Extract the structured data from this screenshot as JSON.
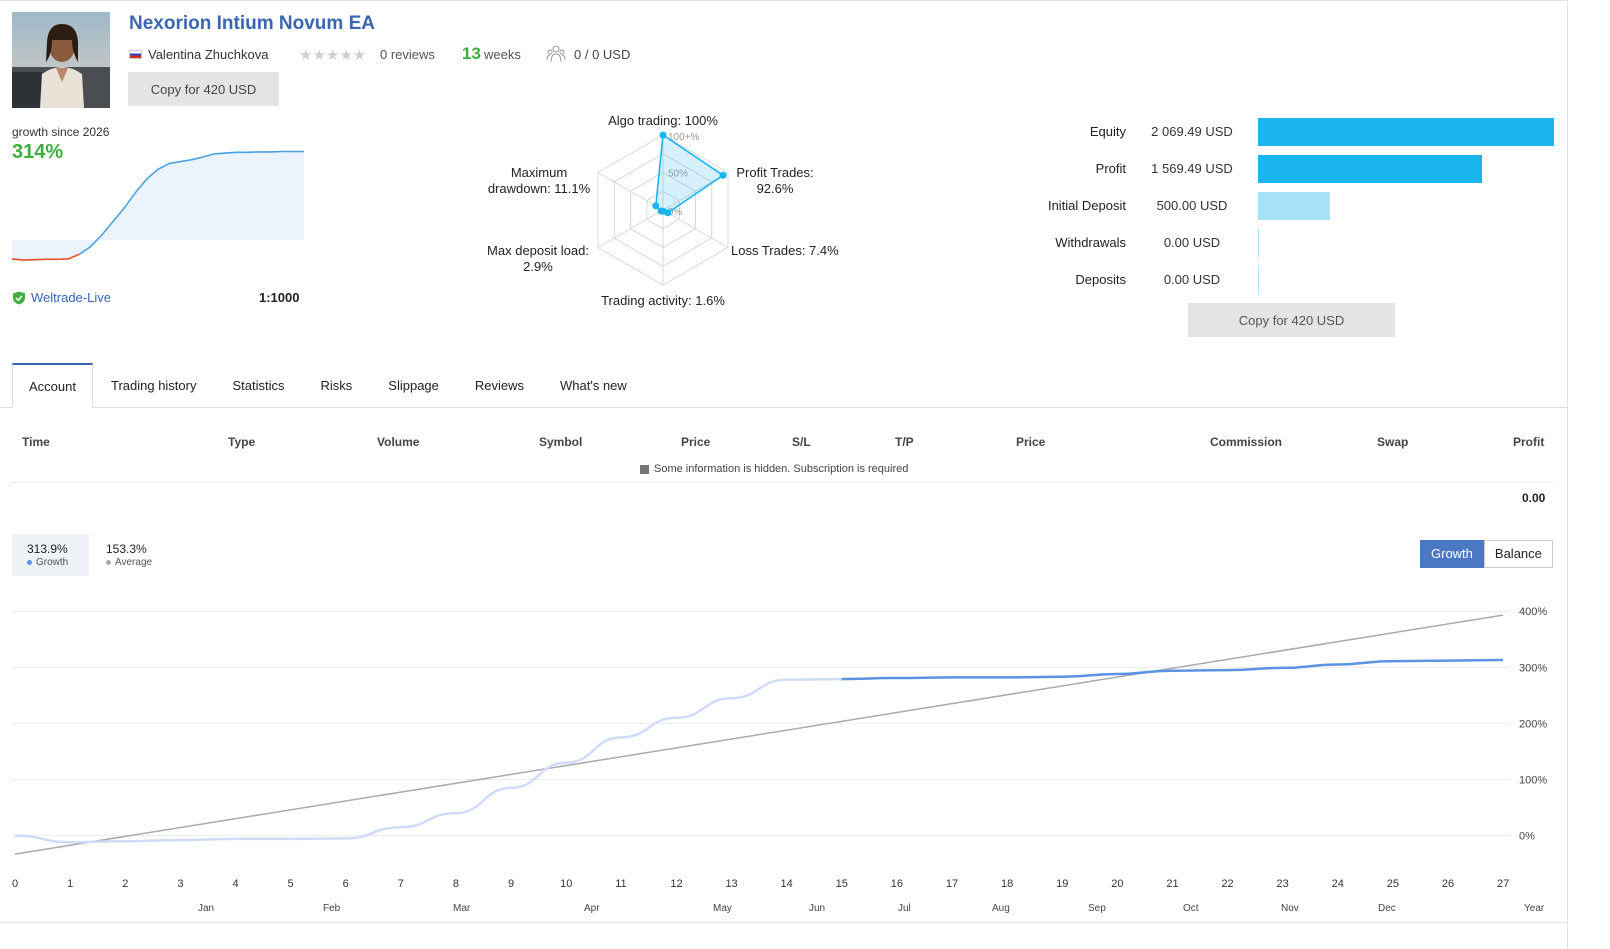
{
  "product": {
    "title": "Nexorion Intium Novum EA",
    "author": "Valentina Zhuchkova",
    "reviews": "0 reviews",
    "weeks_num": "13",
    "weeks_label": "weeks",
    "subscribers": "0 / 0 USD",
    "copy_label": "Copy for 420 USD"
  },
  "growth": {
    "label": "growth since 2026",
    "value": "314%",
    "broker": "Weltrade-Live",
    "leverage": "1:1000"
  },
  "radar": {
    "labels": {
      "algo": "Algo trading: 100%",
      "profit": "Profit Trades:",
      "profit_val": "92.6%",
      "loss": "Loss Trades: 7.4%",
      "activity": "Trading activity: 1.6%",
      "load": "Max deposit load:",
      "load_val": "2.9%",
      "dd": "Maximum",
      "dd2": "drawdown: 11.1%"
    },
    "ticks": [
      "100+%",
      "50%",
      "0%"
    ],
    "values": {
      "algo": 100,
      "profit": 92.6,
      "loss": 7.4,
      "activity": 1.6,
      "load": 2.9,
      "drawdown": 11.1
    }
  },
  "balance_bars": {
    "items": [
      {
        "label": "Equity",
        "value": "2 069.49 USD",
        "amount": 2069.49,
        "color": "#1ab4ee"
      },
      {
        "label": "Profit",
        "value": "1 569.49 USD",
        "amount": 1569.49,
        "color": "#1ab4ee"
      },
      {
        "label": "Initial Deposit",
        "value": "500.00 USD",
        "amount": 500.0,
        "color": "#a7e2f8"
      },
      {
        "label": "Withdrawals",
        "value": "0.00 USD",
        "amount": 0,
        "color": "#a7e2f8"
      },
      {
        "label": "Deposits",
        "value": "0.00 USD",
        "amount": 0,
        "color": "#a7e2f8"
      }
    ],
    "copy_label": "Copy for 420 USD"
  },
  "tabs": [
    "Account",
    "Trading history",
    "Statistics",
    "Risks",
    "Slippage",
    "Reviews",
    "What's new"
  ],
  "table": {
    "headers": [
      "Time",
      "Type",
      "Volume",
      "Symbol",
      "Price",
      "S/L",
      "T/P",
      "Price",
      "Commission",
      "Swap",
      "Profit"
    ],
    "hidden_note": "Some information is hidden. Subscription is required",
    "total_profit": "0.00"
  },
  "legend": {
    "growth_value": "313.9%",
    "growth_label": "Growth",
    "average_value": "153.3%",
    "average_label": "Average"
  },
  "toggle": {
    "growth": "Growth",
    "balance": "Balance"
  },
  "chart_data": {
    "type": "line",
    "x": [
      0,
      1,
      2,
      3,
      4,
      5,
      6,
      7,
      8,
      9,
      10,
      11,
      12,
      13,
      14,
      15,
      16,
      17,
      18,
      19,
      20,
      21,
      22,
      23,
      24,
      25,
      26,
      27
    ],
    "x_tick_labels": [
      "0",
      "1",
      "2",
      "3",
      "4",
      "5",
      "6",
      "7",
      "8",
      "9",
      "10",
      "11",
      "12",
      "13",
      "14",
      "15",
      "16",
      "17",
      "18",
      "19",
      "20",
      "21",
      "22",
      "23",
      "24",
      "25",
      "26",
      "27"
    ],
    "month_labels": [
      "Jan",
      "Feb",
      "Mar",
      "Apr",
      "May",
      "Jun",
      "Jul",
      "Aug",
      "Sep",
      "Oct",
      "Nov",
      "Dec",
      "Year"
    ],
    "y_tick_labels": [
      "400%",
      "300%",
      "200%",
      "100%",
      "0%"
    ],
    "ylim": [
      -40,
      420
    ],
    "series": [
      {
        "name": "Growth",
        "color": "#5b93e0",
        "color_faded": "#d0dcf5",
        "faded_until": 15,
        "values": [
          0,
          -12,
          -10,
          -8,
          -6,
          -6,
          -5,
          15,
          40,
          85,
          130,
          175,
          210,
          245,
          278,
          279,
          281,
          282,
          282,
          283,
          288,
          294,
          295,
          299,
          305,
          311,
          312,
          313
        ]
      },
      {
        "name": "Average",
        "color": "#aaaaaa",
        "values": [
          -33,
          -18,
          -2,
          14,
          29,
          45,
          61,
          77,
          93,
          108,
          124,
          140,
          156,
          171,
          187,
          203,
          219,
          235,
          250,
          266,
          282,
          298,
          314,
          329,
          345,
          361,
          377,
          393
        ]
      }
    ],
    "mini_growth": [
      -2,
      -5,
      -4,
      -3,
      -3,
      -2,
      10,
      30,
      60,
      95,
      130,
      170,
      205,
      230,
      245,
      250,
      255,
      262,
      270,
      272,
      274,
      274,
      275,
      275,
      276,
      276,
      276
    ]
  }
}
